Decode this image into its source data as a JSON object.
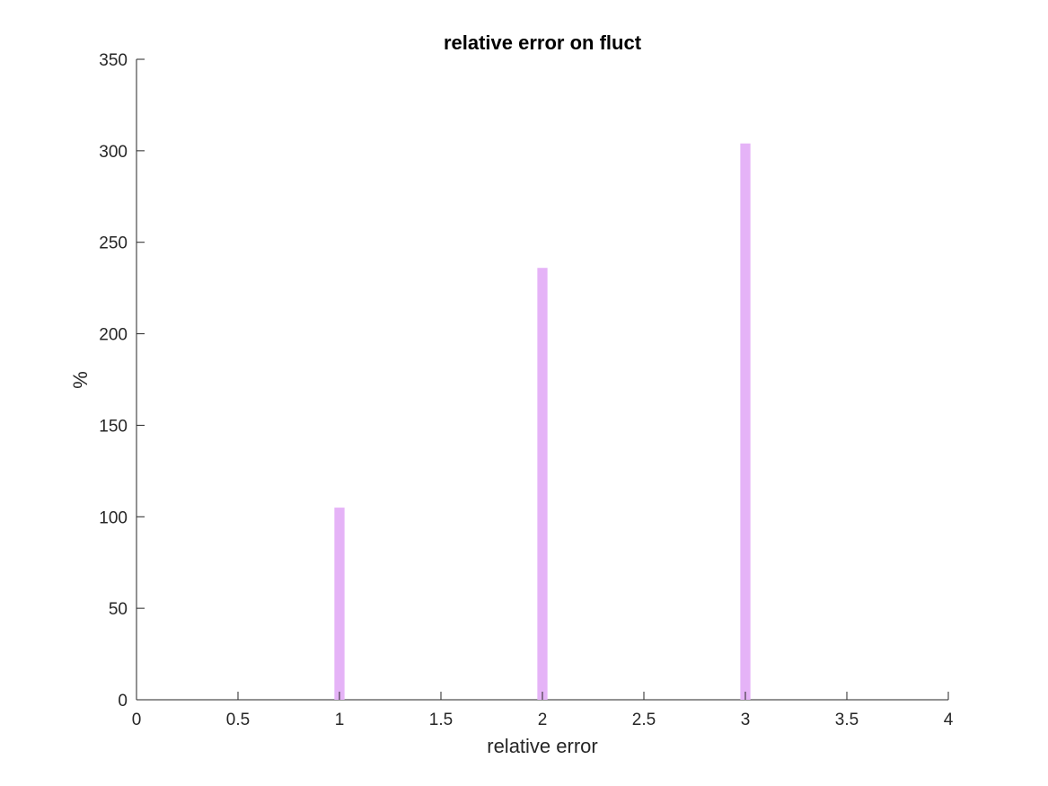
{
  "chart_data": {
    "type": "bar",
    "title": "relative error on fluct",
    "xlabel": "relative error",
    "ylabel": "%",
    "xlim": [
      0,
      4
    ],
    "ylim": [
      0,
      350
    ],
    "xticks": [
      0,
      0.5,
      1,
      1.5,
      2,
      2.5,
      3,
      3.5,
      4
    ],
    "xtick_labels": [
      "0",
      "0.5",
      "1",
      "1.5",
      "2",
      "2.5",
      "3",
      "3.5",
      "4"
    ],
    "yticks": [
      0,
      50,
      100,
      150,
      200,
      250,
      300,
      350
    ],
    "ytick_labels": [
      "0",
      "50",
      "100",
      "150",
      "200",
      "250",
      "300",
      "350"
    ],
    "bar_width": 0.05,
    "bar_color": "#e5b3f7",
    "grid": false,
    "x": [
      1,
      2,
      3
    ],
    "values": [
      105,
      236,
      304
    ]
  }
}
